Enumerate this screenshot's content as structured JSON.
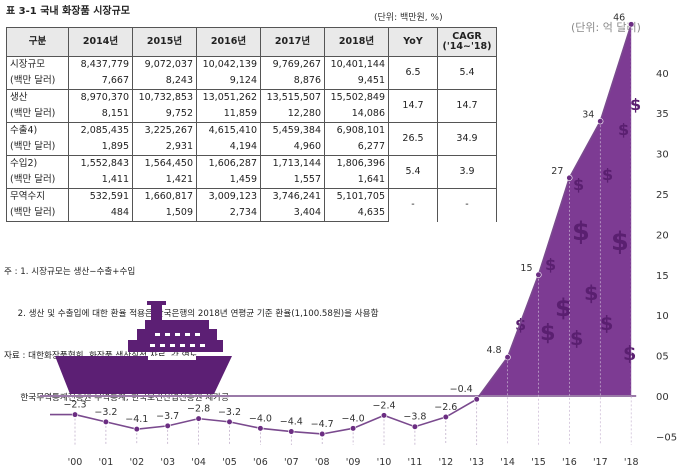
{
  "table": {
    "title": "표 3-1  국내 화장품 시장규모",
    "unit": "(단위: 백만원, %)",
    "headers": [
      "구분",
      "2014년",
      "2015년",
      "2016년",
      "2017년",
      "2018년",
      "YoY",
      "CAGR\n('14~'18)"
    ],
    "header_main": "CAGR",
    "header_sub": "('14~'18)",
    "rows": [
      {
        "label": "시장규모",
        "unit_label": "(백만 달러)",
        "krw": [
          "8,437,779",
          "9,072,037",
          "10,042,139",
          "9,769,267",
          "10,401,144"
        ],
        "usd": [
          "7,667",
          "8,243",
          "9,124",
          "8,876",
          "9,451"
        ],
        "yoy": "6.5",
        "cagr": "5.4"
      },
      {
        "label": "생산",
        "unit_label": "(백만 달러)",
        "krw": [
          "8,970,370",
          "10,732,853",
          "13,051,262",
          "13,515,507",
          "15,502,849"
        ],
        "usd": [
          "8,151",
          "9,752",
          "11,859",
          "12,280",
          "14,086"
        ],
        "yoy": "14.7",
        "cagr": "14.7"
      },
      {
        "label": "수출4)",
        "unit_label": "(백만 달러)",
        "krw": [
          "2,085,435",
          "3,225,267",
          "4,615,410",
          "5,459,384",
          "6,908,101"
        ],
        "usd": [
          "1,895",
          "2,931",
          "4,194",
          "4,960",
          "6,277"
        ],
        "yoy": "26.5",
        "cagr": "34.9"
      },
      {
        "label": "수입2)",
        "unit_label": "(백만 달러)",
        "krw": [
          "1,552,843",
          "1,564,450",
          "1,606,287",
          "1,713,144",
          "1,806,396"
        ],
        "usd": [
          "1,411",
          "1,421",
          "1,459",
          "1,557",
          "1,641"
        ],
        "yoy": "5.4",
        "cagr": "3.9"
      },
      {
        "label": "무역수지",
        "unit_label": "(백만 달러)",
        "krw": [
          "532,591",
          "1,660,817",
          "3,009,123",
          "3,746,241",
          "5,101,705"
        ],
        "usd": [
          "484",
          "1,509",
          "2,734",
          "3,404",
          "4,635"
        ],
        "yoy": "-",
        "cagr": "-"
      }
    ]
  },
  "notes": [
    "주 : 1. 시장규모는 생산−수출+수입",
    "     2. 생산 및 수출입에 대한 환율 적용은 한국은행의 2018년 연평균 기준 환율(1,100.58원)을 사용함",
    "자료 : 대한화장품협회, 화장품 생산실적 자료, 각 연도",
    "      한국무역통계진흥원 무역통계, 한국보건산업진흥원 재가공"
  ],
  "chart_unit": "(단위: 억 달러)",
  "colors": {
    "accent": "#6b2d82",
    "fill": "#7d3b93",
    "ship": "#5c1f74",
    "line": "#7a4a8e"
  },
  "chart_data": {
    "type": "line",
    "x": [
      "'00",
      "'01",
      "'02",
      "'03",
      "'04",
      "'05",
      "'06",
      "'07",
      "'08",
      "'09",
      "'10",
      "'11",
      "'12",
      "'13",
      "'14",
      "'15",
      "'16",
      "'17",
      "'18"
    ],
    "values": [
      -2.3,
      -3.2,
      -4.1,
      -3.7,
      -2.8,
      -3.2,
      -4.0,
      -4.4,
      -4.7,
      -4.0,
      -2.4,
      -3.8,
      -2.6,
      -0.4,
      4.8,
      15,
      27,
      34,
      46
    ],
    "value_labels": [
      "−2.3",
      "−3.2",
      "−4.1",
      "−3.7",
      "−2.8",
      "−3.2",
      "−4.0",
      "−4.4",
      "−4.7",
      "−4.0",
      "−2.4",
      "−3.8",
      "−2.6",
      "−0.4",
      "4.8",
      "15",
      "27",
      "34",
      "46"
    ],
    "y_ticks": [
      40,
      35,
      30,
      25,
      20,
      15,
      10,
      5,
      0,
      -5
    ],
    "y_tick_labels": [
      "40",
      "35",
      "30",
      "25",
      "20",
      "15",
      "10",
      "05",
      "00",
      "−05"
    ],
    "ylim": [
      -5,
      42
    ],
    "grid": false
  }
}
